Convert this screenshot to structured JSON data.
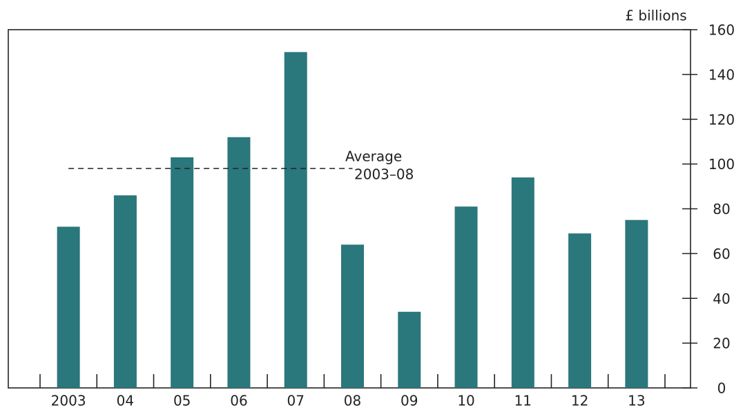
{
  "chart_data": {
    "type": "bar",
    "unit_label": "£ billions",
    "categories": [
      "2003",
      "04",
      "05",
      "06",
      "07",
      "08",
      "09",
      "10",
      "11",
      "12",
      "13"
    ],
    "values": [
      72,
      86,
      103,
      112,
      150,
      64,
      34,
      81,
      94,
      69,
      75
    ],
    "color": "#2a777c",
    "ylim": [
      0,
      160
    ],
    "yticks": [
      0,
      20,
      40,
      60,
      80,
      100,
      120,
      140,
      160
    ],
    "y_axis_side": "right",
    "average": {
      "value": 98,
      "label_lines": [
        "Average",
        "2003–08"
      ]
    }
  }
}
